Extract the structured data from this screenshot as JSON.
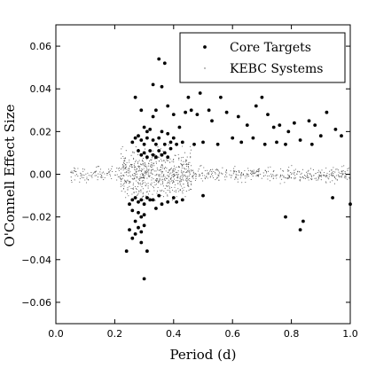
{
  "chart_data": {
    "type": "scatter",
    "xlabel": "Period (d)",
    "ylabel": "O'Connell Effect Size",
    "xlim": [
      0.0,
      1.0
    ],
    "ylim": [
      -0.07,
      0.07
    ],
    "grid": false,
    "legend_position": "top-right",
    "x_ticks": [
      0.0,
      0.2,
      0.4,
      0.6,
      0.8,
      1.0
    ],
    "x_tick_labels": [
      "0.0",
      "0.2",
      "0.4",
      "0.6",
      "0.8",
      "1.0"
    ],
    "y_ticks": [
      -0.06,
      -0.04,
      -0.02,
      0.0,
      0.02,
      0.04,
      0.06
    ],
    "y_tick_labels": [
      "−0.06",
      "−0.04",
      "−0.02",
      "0.00",
      "0.02",
      "0.04",
      "0.06"
    ],
    "series": [
      {
        "name": "Core Targets",
        "color": "#000000",
        "marker": "dot-large",
        "points": [
          [
            0.35,
            0.054
          ],
          [
            0.37,
            0.052
          ],
          [
            0.33,
            0.042
          ],
          [
            0.36,
            0.041
          ],
          [
            0.27,
            0.036
          ],
          [
            0.45,
            0.036
          ],
          [
            0.49,
            0.038
          ],
          [
            0.56,
            0.036
          ],
          [
            0.7,
            0.036
          ],
          [
            0.38,
            0.032
          ],
          [
            0.29,
            0.03
          ],
          [
            0.33,
            0.027
          ],
          [
            0.34,
            0.03
          ],
          [
            0.4,
            0.028
          ],
          [
            0.44,
            0.029
          ],
          [
            0.46,
            0.03
          ],
          [
            0.48,
            0.028
          ],
          [
            0.52,
            0.03
          ],
          [
            0.53,
            0.025
          ],
          [
            0.58,
            0.029
          ],
          [
            0.62,
            0.027
          ],
          [
            0.65,
            0.023
          ],
          [
            0.68,
            0.032
          ],
          [
            0.72,
            0.028
          ],
          [
            0.74,
            0.022
          ],
          [
            0.76,
            0.023
          ],
          [
            0.79,
            0.02
          ],
          [
            0.81,
            0.024
          ],
          [
            0.86,
            0.025
          ],
          [
            0.88,
            0.023
          ],
          [
            0.92,
            0.029
          ],
          [
            0.95,
            0.021
          ],
          [
            0.3,
            0.022
          ],
          [
            0.31,
            0.02
          ],
          [
            0.32,
            0.021
          ],
          [
            0.36,
            0.02
          ],
          [
            0.38,
            0.019
          ],
          [
            0.4,
            0.017
          ],
          [
            0.42,
            0.022
          ],
          [
            0.27,
            0.017
          ],
          [
            0.28,
            0.018
          ],
          [
            0.26,
            0.015
          ],
          [
            0.29,
            0.016
          ],
          [
            0.3,
            0.014
          ],
          [
            0.31,
            0.017
          ],
          [
            0.33,
            0.016
          ],
          [
            0.34,
            0.014
          ],
          [
            0.35,
            0.017
          ],
          [
            0.37,
            0.014
          ],
          [
            0.39,
            0.015
          ],
          [
            0.41,
            0.014
          ],
          [
            0.43,
            0.015
          ],
          [
            0.47,
            0.014
          ],
          [
            0.5,
            0.015
          ],
          [
            0.55,
            0.014
          ],
          [
            0.6,
            0.017
          ],
          [
            0.63,
            0.015
          ],
          [
            0.67,
            0.017
          ],
          [
            0.71,
            0.014
          ],
          [
            0.75,
            0.015
          ],
          [
            0.78,
            0.014
          ],
          [
            0.83,
            0.016
          ],
          [
            0.87,
            0.014
          ],
          [
            0.9,
            0.018
          ],
          [
            0.97,
            0.018
          ],
          [
            0.28,
            0.011
          ],
          [
            0.3,
            0.01
          ],
          [
            0.32,
            0.011
          ],
          [
            0.33,
            0.009
          ],
          [
            0.35,
            0.011
          ],
          [
            0.37,
            0.01
          ],
          [
            0.39,
            0.012
          ],
          [
            0.29,
            0.009
          ],
          [
            0.31,
            0.008
          ],
          [
            0.34,
            0.008
          ],
          [
            0.36,
            0.009
          ],
          [
            0.38,
            0.008
          ],
          [
            0.25,
            -0.014
          ],
          [
            0.26,
            -0.012
          ],
          [
            0.27,
            -0.011
          ],
          [
            0.28,
            -0.013
          ],
          [
            0.29,
            -0.012
          ],
          [
            0.3,
            -0.014
          ],
          [
            0.31,
            -0.011
          ],
          [
            0.33,
            -0.012
          ],
          [
            0.35,
            -0.01
          ],
          [
            0.36,
            -0.014
          ],
          [
            0.38,
            -0.013
          ],
          [
            0.4,
            -0.011
          ],
          [
            0.41,
            -0.013
          ],
          [
            0.43,
            -0.012
          ],
          [
            0.5,
            -0.01
          ],
          [
            0.28,
            -0.018
          ],
          [
            0.29,
            -0.02
          ],
          [
            0.3,
            -0.019
          ],
          [
            0.27,
            -0.022
          ],
          [
            0.28,
            -0.025
          ],
          [
            0.29,
            -0.027
          ],
          [
            0.3,
            -0.024
          ],
          [
            0.25,
            -0.026
          ],
          [
            0.26,
            -0.03
          ],
          [
            0.27,
            -0.028
          ],
          [
            0.29,
            -0.032
          ],
          [
            0.31,
            -0.036
          ],
          [
            0.24,
            -0.036
          ],
          [
            0.3,
            -0.049
          ],
          [
            0.32,
            -0.012
          ],
          [
            0.34,
            -0.016
          ],
          [
            0.26,
            -0.017
          ],
          [
            0.78,
            -0.02
          ],
          [
            0.83,
            -0.026
          ],
          [
            0.84,
            -0.022
          ],
          [
            1.0,
            -0.014
          ],
          [
            0.94,
            -0.011
          ]
        ]
      },
      {
        "name": "KEBC Systems",
        "color": "#555555",
        "marker": "dot-small",
        "distribution": "dense band near 0.00 across periods 0.05–1.00, wider spread (about ±0.015) for periods 0.22–0.45"
      }
    ]
  }
}
